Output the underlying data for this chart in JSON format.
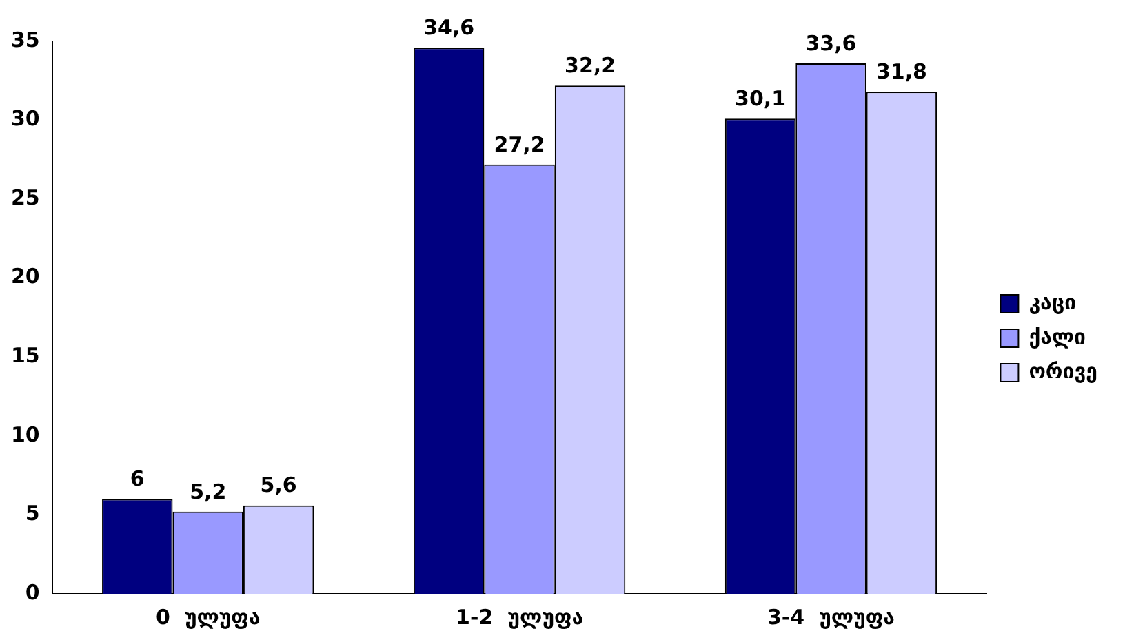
{
  "chart_data": {
    "type": "bar",
    "categories": [
      "0  ულუფა",
      "1-2  ულუფა",
      "3-4  ულუფა"
    ],
    "series": [
      {
        "name": "კაცი",
        "color": "#000080",
        "values": [
          6,
          34.6,
          30.1
        ],
        "value_labels": [
          "6",
          "34,6",
          "30,1"
        ]
      },
      {
        "name": "ქალი",
        "color": "#9999ff",
        "values": [
          5.2,
          27.2,
          33.6
        ],
        "value_labels": [
          "5,2",
          "27,2",
          "33,6"
        ]
      },
      {
        "name": "ორივე",
        "color": "#ccccff",
        "values": [
          5.6,
          32.2,
          31.8
        ],
        "value_labels": [
          "5,6",
          "32,2",
          "31,8"
        ]
      }
    ],
    "ylim": [
      0,
      35
    ],
    "yticks": [
      0,
      5,
      10,
      15,
      20,
      25,
      30,
      35
    ],
    "grid": false,
    "legend": "right"
  }
}
